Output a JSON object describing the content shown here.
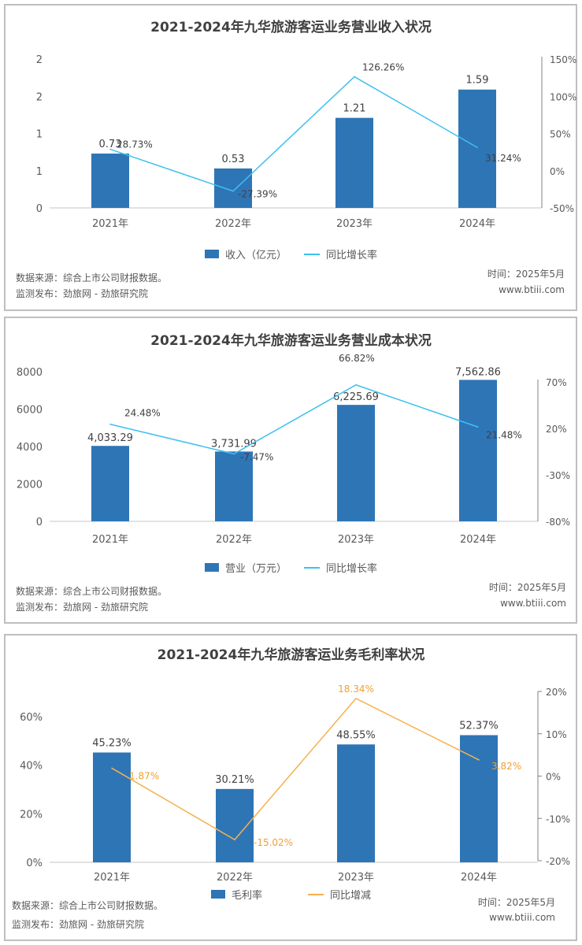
{
  "colors": {
    "bar": "#2e75b6",
    "line_blue": "#3ec0ef",
    "line_orange": "#f5b04f",
    "label_orange": "#f0a030",
    "text": "#404040"
  },
  "footer": {
    "source": "数据来源：综合上市公司财报数据。",
    "publisher": "监测发布：劲旅网 - 劲旅研究院",
    "time": "时间：2025年5月",
    "site": "www.btiii.com"
  },
  "chart_data": [
    {
      "type": "bar",
      "title": "2021-2024年九华旅游客运业务营业收入状况",
      "categories": [
        "2021年",
        "2022年",
        "2023年",
        "2024年"
      ],
      "series": [
        {
          "name": "收入（亿元）",
          "type": "bar",
          "axis": "left",
          "values": [
            0.73,
            0.53,
            1.21,
            1.59
          ],
          "labels": [
            "0.73",
            "0.53",
            "1.21",
            "1.59"
          ]
        },
        {
          "name": "同比增长率",
          "type": "line",
          "axis": "right",
          "values": [
            28.73,
            -27.39,
            126.26,
            31.24
          ],
          "labels": [
            "28.73%",
            "-27.39%",
            "126.26%",
            "31.24%"
          ]
        }
      ],
      "left_axis": {
        "ylim": [
          0,
          2
        ],
        "ticks": [
          "0",
          "1",
          "1",
          "2",
          "2"
        ]
      },
      "right_axis": {
        "ylim": [
          -50,
          150
        ],
        "ticks": [
          "-50%",
          "0%",
          "50%",
          "100%",
          "150%"
        ]
      },
      "legend_position": "bottom"
    },
    {
      "type": "bar",
      "title": "2021-2024年九华旅游客运业务营业成本状况",
      "categories": [
        "2021年",
        "2022年",
        "2023年",
        "2024年"
      ],
      "series": [
        {
          "name": "营业（万元）",
          "type": "bar",
          "axis": "left",
          "values": [
            4033.29,
            3731.99,
            6225.69,
            7562.86
          ],
          "labels": [
            "4,033.29",
            "3,731.99",
            "6,225.69",
            "7,562.86"
          ]
        },
        {
          "name": "同比增长率",
          "type": "line",
          "axis": "right",
          "values": [
            24.48,
            -7.47,
            66.82,
            21.48
          ],
          "labels": [
            "24.48%",
            "-7.47%",
            "66.82%",
            "21.48%"
          ]
        }
      ],
      "left_axis": {
        "ylim": [
          0,
          8000
        ],
        "ticks": [
          "0",
          "2000",
          "4000",
          "6000",
          "8000"
        ]
      },
      "right_axis": {
        "ylim": [
          -80,
          70
        ],
        "ticks": [
          "-80%",
          "-30%",
          "20%",
          "70%"
        ]
      },
      "legend_position": "bottom"
    },
    {
      "type": "bar",
      "title": "2021-2024年九华旅游客运业务毛利率状况",
      "categories": [
        "2021年",
        "2022年",
        "2023年",
        "2024年"
      ],
      "series": [
        {
          "name": "毛利率",
          "type": "bar",
          "axis": "left",
          "values": [
            45.23,
            30.21,
            48.55,
            52.37
          ],
          "labels": [
            "45.23%",
            "30.21%",
            "48.55%",
            "52.37%"
          ]
        },
        {
          "name": "同比增减",
          "type": "line",
          "axis": "right",
          "values": [
            1.87,
            -15.02,
            18.34,
            3.82
          ],
          "labels": [
            "1.87%",
            "-15.02%",
            "18.34%",
            "3.82%"
          ]
        }
      ],
      "left_axis": {
        "ylim": [
          0,
          60
        ],
        "ticks": [
          "0%",
          "20%",
          "40%",
          "60%"
        ]
      },
      "right_axis": {
        "ylim": [
          -20,
          20
        ],
        "ticks": [
          "-20%",
          "-10%",
          "0%",
          "10%",
          "20%"
        ]
      },
      "legend_position": "bottom"
    }
  ]
}
